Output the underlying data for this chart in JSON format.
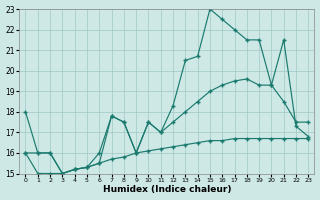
{
  "bg_color": "#cde8e5",
  "grid_color": "#a0c8c4",
  "line_color": "#1a7a6e",
  "xlabel": "Humidex (Indice chaleur)",
  "xlim": [
    -0.5,
    23.5
  ],
  "ylim": [
    15,
    23
  ],
  "yticks": [
    15,
    16,
    17,
    18,
    19,
    20,
    21,
    22,
    23
  ],
  "xticks": [
    0,
    1,
    2,
    3,
    4,
    5,
    6,
    7,
    8,
    9,
    10,
    11,
    12,
    13,
    14,
    15,
    16,
    17,
    18,
    19,
    20,
    21,
    22,
    23
  ],
  "line1_x": [
    0,
    1,
    2,
    3,
    4,
    5,
    6,
    7,
    8,
    9,
    10,
    11,
    12,
    13,
    14,
    15,
    16,
    17,
    18,
    19,
    20,
    21,
    22,
    23
  ],
  "line1_y": [
    16.0,
    15.0,
    15.0,
    15.0,
    15.2,
    15.3,
    15.5,
    15.7,
    15.8,
    16.0,
    16.1,
    16.2,
    16.3,
    16.4,
    16.5,
    16.6,
    16.6,
    16.7,
    16.7,
    16.7,
    16.7,
    16.7,
    16.7,
    16.7
  ],
  "line2_x": [
    0,
    1,
    2,
    3,
    4,
    5,
    6,
    7,
    8,
    9,
    10,
    11,
    12,
    13,
    14,
    15,
    16,
    17,
    18,
    19,
    20,
    21,
    22,
    23
  ],
  "line2_y": [
    16.0,
    16.0,
    16.0,
    15.0,
    15.2,
    15.3,
    16.0,
    17.8,
    17.5,
    16.0,
    17.5,
    17.0,
    17.5,
    18.0,
    18.5,
    19.0,
    19.3,
    19.5,
    19.6,
    19.3,
    19.3,
    18.5,
    17.5,
    17.5
  ],
  "line3_x": [
    0,
    1,
    2,
    3,
    4,
    5,
    6,
    7,
    8,
    9,
    10,
    11,
    12,
    13,
    14,
    15,
    16,
    17,
    18,
    19,
    20,
    21,
    22,
    23
  ],
  "line3_y": [
    18.0,
    16.0,
    16.0,
    15.0,
    15.2,
    15.3,
    15.5,
    17.8,
    17.5,
    16.0,
    17.5,
    17.0,
    18.3,
    20.5,
    20.7,
    23.0,
    22.5,
    22.0,
    21.5,
    21.5,
    19.3,
    21.5,
    17.3,
    16.8
  ]
}
